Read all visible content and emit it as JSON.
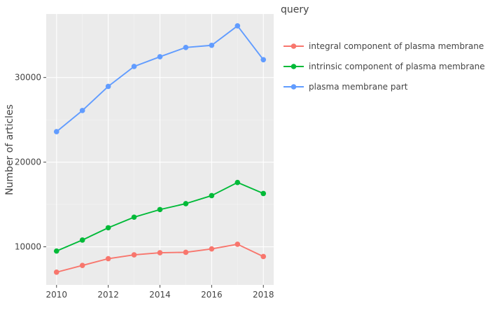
{
  "chart_data": {
    "type": "line",
    "xlabel": "",
    "ylabel": "Number of articles",
    "x": [
      2010,
      2011,
      2012,
      2013,
      2014,
      2015,
      2016,
      2017,
      2018
    ],
    "xticks": [
      2010,
      2012,
      2014,
      2016,
      2018
    ],
    "xlim": [
      2009.6,
      2018.4
    ],
    "yticks": [
      10000,
      20000,
      30000
    ],
    "ylim": [
      5500,
      37500
    ],
    "grid": true,
    "legend": {
      "title": "query",
      "position": "right"
    },
    "series": [
      {
        "name": "integral component of plasma membrane",
        "color": "#F8766D",
        "values": [
          7000,
          7800,
          8600,
          9050,
          9300,
          9350,
          9750,
          10300,
          8850
        ]
      },
      {
        "name": "intrinsic component of plasma membrane",
        "color": "#00BA38",
        "values": [
          9500,
          10800,
          12250,
          13500,
          14400,
          15100,
          16050,
          17600,
          16300
        ]
      },
      {
        "name": "plasma membrane part",
        "color": "#619CFF",
        "values": [
          23600,
          26100,
          28950,
          31300,
          32450,
          33550,
          33800,
          36100,
          32100
        ]
      }
    ]
  }
}
